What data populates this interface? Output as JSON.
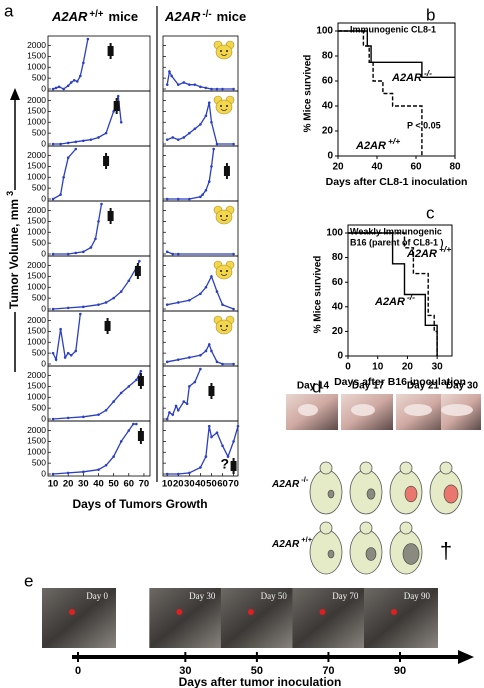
{
  "panel_labels": [
    "a",
    "b",
    "c",
    "d",
    "e"
  ],
  "chart_data": [
    {
      "type": "line-grid",
      "columns": [
        {
          "gene": "A2AR",
          "genotype": "+/+",
          "suffix": "mice"
        },
        {
          "gene": "A2AR",
          "genotype": "-/-",
          "suffix": "mice"
        }
      ],
      "y_label": {
        "text": "Tumor Volume, mm",
        "superscript": "3"
      },
      "x_label": "Days  of Tumors Growth",
      "color": "#2b3fc4",
      "xlim": [
        8,
        74
      ],
      "xticks": [
        10,
        20,
        30,
        40,
        50,
        60,
        70
      ],
      "ylim": [
        0,
        2300
      ],
      "yticks": [
        0,
        500,
        1000,
        1500,
        2000
      ],
      "annotation": "?",
      "panels": [
        [
          {
            "x": [
              10,
              12,
              14,
              17,
              20,
              22,
              24,
              26,
              28,
              30,
              33
            ],
            "values": [
              0,
              50,
              100,
              0,
              150,
              300,
              400,
              350,
              600,
              1200,
              2300
            ]
          },
          {
            "x": [
              10,
              15,
              20,
              25,
              30,
              35,
              40,
              45,
              50,
              53,
              55
            ],
            "values": [
              0,
              0,
              50,
              100,
              150,
              200,
              300,
              500,
              1500,
              2200,
              1000
            ]
          },
          {
            "x": [
              10,
              15,
              17,
              20,
              25
            ],
            "values": [
              0,
              200,
              1000,
              1900,
              2300
            ]
          },
          {
            "x": [
              10,
              20,
              25,
              30,
              35,
              38,
              40,
              42
            ],
            "values": [
              0,
              0,
              50,
              100,
              300,
              700,
              1500,
              2300
            ]
          },
          {
            "x": [
              10,
              20,
              30,
              40,
              45,
              50,
              55,
              60,
              65,
              67
            ],
            "values": [
              0,
              50,
              100,
              200,
              300,
              500,
              800,
              1300,
              1900,
              2200
            ]
          },
          {
            "x": [
              10,
              12,
              15,
              18,
              20,
              22,
              25,
              28
            ],
            "values": [
              500,
              200,
              1600,
              300,
              500,
              400,
              600,
              2300
            ]
          },
          {
            "x": [
              10,
              20,
              30,
              40,
              45,
              50,
              55,
              60,
              65,
              68
            ],
            "values": [
              0,
              50,
              100,
              200,
              400,
              800,
              1200,
              1500,
              1800,
              2200
            ]
          },
          {
            "x": [
              10,
              20,
              30,
              40,
              45,
              50,
              55,
              60,
              63,
              65
            ],
            "values": [
              0,
              50,
              100,
              200,
              400,
              800,
              1500,
              2000,
              2300,
              2300
            ]
          }
        ],
        [
          {
            "x": [
              10,
              12,
              14,
              20,
              25,
              30,
              35,
              40,
              45,
              50,
              55,
              60,
              70
            ],
            "values": [
              200,
              800,
              600,
              200,
              300,
              200,
              200,
              100,
              50,
              0,
              0,
              0,
              0
            ]
          },
          {
            "x": [
              10,
              15,
              20,
              25,
              30,
              35,
              40,
              45,
              48,
              50,
              55,
              70
            ],
            "values": [
              200,
              300,
              200,
              300,
              500,
              700,
              900,
              1300,
              1900,
              1000,
              0,
              0
            ]
          },
          {
            "x": [
              10,
              20,
              30,
              40,
              42,
              45,
              48,
              50,
              52
            ],
            "values": [
              0,
              0,
              0,
              100,
              200,
              400,
              800,
              1500,
              2300
            ]
          },
          {
            "x": [
              10,
              15,
              20,
              70
            ],
            "values": [
              100,
              0,
              0,
              0
            ]
          },
          {
            "x": [
              10,
              20,
              30,
              40,
              45,
              50,
              55,
              60,
              70
            ],
            "values": [
              200,
              300,
              400,
              700,
              1000,
              1500,
              800,
              200,
              0
            ]
          },
          {
            "x": [
              10,
              20,
              30,
              40,
              45,
              48,
              50,
              55,
              60,
              70
            ],
            "values": [
              100,
              200,
              300,
              400,
              600,
              900,
              600,
              100,
              0,
              0
            ]
          },
          {
            "x": [
              10,
              12,
              15,
              18,
              20,
              25,
              28,
              30,
              35,
              40
            ],
            "values": [
              0,
              300,
              200,
              600,
              400,
              800,
              700,
              1500,
              1700,
              2300
            ]
          },
          {
            "x": [
              10,
              20,
              30,
              40,
              45,
              48,
              50,
              55,
              60,
              65,
              70,
              74
            ],
            "values": [
              0,
              0,
              50,
              300,
              800,
              2200,
              1700,
              1900,
              1300,
              800,
              1500,
              2200
            ]
          }
        ]
      ]
    },
    {
      "type": "step",
      "title": [
        "Immunogenic CL8-1"
      ],
      "y_label": "% Mice survived",
      "x_label": "Days after CL8-1 inoculation",
      "annotation": "P < 0.05",
      "xlim": [
        20,
        80
      ],
      "xticks": [
        20,
        40,
        60,
        80
      ],
      "ylim": [
        0,
        100
      ],
      "yticks": [
        0,
        20,
        40,
        60,
        80,
        100
      ],
      "series": [
        {
          "name": "A2AR",
          "genotype": "-/-",
          "dashed": false,
          "x": [
            20,
            35,
            37,
            63,
            80
          ],
          "values": [
            100,
            88,
            75,
            63,
            63
          ]
        },
        {
          "name": "A2AR",
          "genotype": "+/+",
          "dashed": true,
          "x": [
            20,
            33,
            36,
            38,
            43,
            48,
            63
          ],
          "values": [
            100,
            88,
            75,
            60,
            50,
            40,
            0
          ]
        }
      ]
    },
    {
      "type": "step",
      "title": [
        "Weakly  Immunogenic",
        "B16 (parent of CL8-1 )"
      ],
      "y_label": "% Mice survived",
      "x_label": "Days after B16  inoculation",
      "xlim": [
        0,
        35
      ],
      "xticks": [
        0,
        10,
        20,
        30
      ],
      "ylim": [
        0,
        100
      ],
      "yticks": [
        0,
        20,
        40,
        60,
        80,
        100
      ],
      "series": [
        {
          "name": "A2AR",
          "genotype": "+/+",
          "dashed": true,
          "x": [
            0,
            19,
            22,
            27,
            29,
            30
          ],
          "values": [
            100,
            88,
            67,
            33,
            20,
            0
          ]
        },
        {
          "name": "A2AR",
          "genotype": "-/-",
          "dashed": false,
          "x": [
            0,
            15,
            19,
            26,
            30
          ],
          "values": [
            100,
            75,
            50,
            25,
            0
          ]
        }
      ]
    }
  ],
  "panel_d": {
    "days": [
      "Day 14",
      "Day 17",
      "Day 21",
      "Day 30"
    ],
    "rows": [
      {
        "gene": "A2AR",
        "genotype": "-/-"
      },
      {
        "gene": "A2AR",
        "genotype": "+/+"
      }
    ],
    "dagger": "†"
  },
  "panel_e": {
    "photo_labels": [
      "Day 0",
      "Day 30",
      "Day 50",
      "Day 70",
      "Day 90"
    ],
    "ticks": [
      0,
      30,
      50,
      70,
      90
    ],
    "x_label": "Days after tumor inoculation"
  }
}
